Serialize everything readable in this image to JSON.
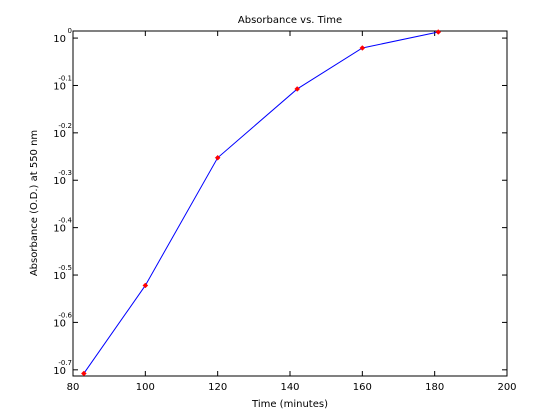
{
  "chart_data": {
    "type": "line",
    "title": "Absorbance vs. Time",
    "xlabel": "Time (minutes)",
    "ylabel": "Absorbance (O.D.) at 550 nm",
    "x": [
      83,
      100,
      120,
      142,
      160,
      181
    ],
    "series": [
      {
        "values": [
          0.196,
          0.3006,
          0.559,
          0.781,
          0.953,
          1.03
        ],
        "color": "#0000ff",
        "marker_color": "#ff0000"
      }
    ],
    "xlim": [
      80,
      200
    ],
    "xticks": [
      80,
      100,
      120,
      140,
      160,
      180,
      200
    ],
    "ylim": [
      0.1936,
      1.035
    ],
    "yscale": "log",
    "yticks": [
      {
        "value": 1,
        "label": "10",
        "exponent": "0"
      },
      {
        "value": 0.7943,
        "label": "10",
        "exponent": "-0.1"
      },
      {
        "value": 0.631,
        "label": "10",
        "exponent": "-0.2"
      },
      {
        "value": 0.5012,
        "label": "10",
        "exponent": "-0.3"
      },
      {
        "value": 0.3981,
        "label": "10",
        "exponent": "-0.4"
      },
      {
        "value": 0.3162,
        "label": "10",
        "exponent": "-0.5"
      },
      {
        "value": 0.2512,
        "label": "10",
        "exponent": "-0.6"
      },
      {
        "value": 0.1995,
        "label": "10",
        "exponent": "-0.7"
      }
    ],
    "grid": false
  }
}
